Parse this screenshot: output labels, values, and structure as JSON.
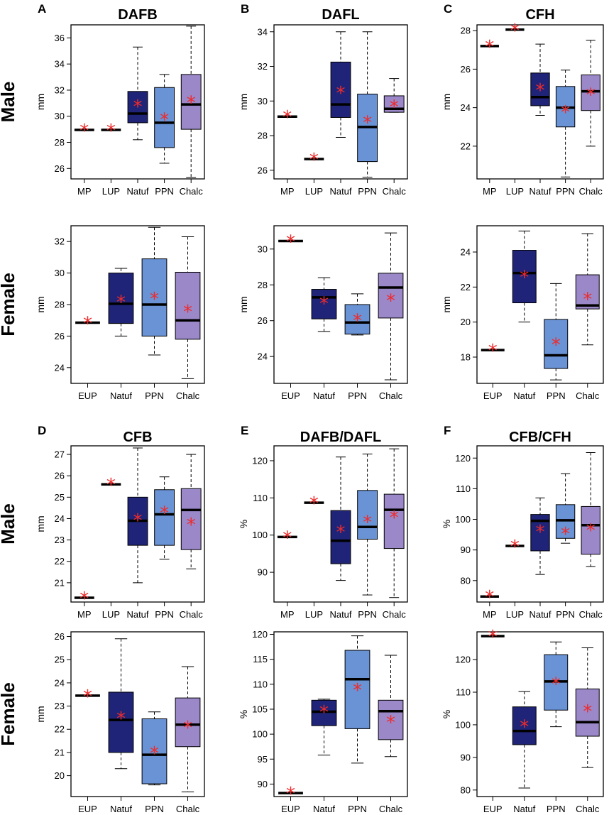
{
  "colors": {
    "MP": "#1f2478",
    "LUP": "#1f2478",
    "EUP": "#1f2478",
    "Natuf": "#1f2478",
    "PPN": "#6a93d6",
    "Chalc": "#9b88c9",
    "median": "#000000",
    "mean_marker": "#ee2b2b",
    "frame": "#000000"
  },
  "layout": {
    "rows": [
      {
        "sex": "Male",
        "panels": [
          "A",
          "B",
          "C"
        ],
        "block": 0,
        "pos": 0
      },
      {
        "sex": "Female",
        "panels": [
          "A",
          "B",
          "C"
        ],
        "block": 0,
        "pos": 1
      },
      {
        "sex": "Male",
        "panels": [
          "D",
          "E",
          "F"
        ],
        "block": 1,
        "pos": 0
      },
      {
        "sex": "Female",
        "panels": [
          "D",
          "E",
          "F"
        ],
        "block": 1,
        "pos": 1
      }
    ]
  },
  "chart_data": [
    {
      "panel": "A",
      "title": "DAFB",
      "type": "box",
      "sex": "Male",
      "ylabel": "mm",
      "ylim": [
        25.2,
        37.0
      ],
      "yticks": [
        26,
        28,
        30,
        32,
        34,
        36
      ],
      "categories": [
        "MP",
        "LUP",
        "Natuf",
        "PPN",
        "Chalc"
      ],
      "boxes": [
        {
          "cat": "MP",
          "min": 28.95,
          "q1": 28.95,
          "median": 28.95,
          "q3": 28.95,
          "max": 28.95,
          "mean": 28.95
        },
        {
          "cat": "LUP",
          "min": 28.95,
          "q1": 28.95,
          "median": 28.95,
          "q3": 28.95,
          "max": 28.95,
          "mean": 28.95
        },
        {
          "cat": "Natuf",
          "min": 28.2,
          "q1": 29.5,
          "median": 30.2,
          "q3": 31.9,
          "max": 35.3,
          "mean": 30.8
        },
        {
          "cat": "PPN",
          "min": 26.4,
          "q1": 27.6,
          "median": 29.5,
          "q3": 32.2,
          "max": 33.2,
          "mean": 29.8
        },
        {
          "cat": "Chalc",
          "min": 25.3,
          "q1": 29.0,
          "median": 30.9,
          "q3": 33.2,
          "max": 36.9,
          "mean": 31.1
        }
      ]
    },
    {
      "panel": "A",
      "title": "DAFB",
      "type": "box",
      "sex": "Female",
      "ylabel": "mm",
      "ylim": [
        23.0,
        33.0
      ],
      "yticks": [
        24,
        26,
        28,
        30,
        32
      ],
      "categories": [
        "EUP",
        "Natuf",
        "PPN",
        "Chalc"
      ],
      "boxes": [
        {
          "cat": "EUP",
          "min": 26.85,
          "q1": 26.85,
          "median": 26.85,
          "q3": 26.85,
          "max": 26.85,
          "mean": 26.85
        },
        {
          "cat": "Natuf",
          "min": 26.0,
          "q1": 26.8,
          "median": 28.05,
          "q3": 30.0,
          "max": 30.3,
          "mean": 28.2
        },
        {
          "cat": "PPN",
          "min": 24.8,
          "q1": 26.0,
          "median": 28.0,
          "q3": 30.9,
          "max": 32.9,
          "mean": 28.4
        },
        {
          "cat": "Chalc",
          "min": 23.3,
          "q1": 25.8,
          "median": 27.0,
          "q3": 30.05,
          "max": 32.3,
          "mean": 27.6
        }
      ]
    },
    {
      "panel": "B",
      "title": "DAFL",
      "type": "box",
      "sex": "Male",
      "ylabel": "mm",
      "ylim": [
        25.5,
        34.4
      ],
      "yticks": [
        26,
        28,
        30,
        32,
        34
      ],
      "categories": [
        "MP",
        "LUP",
        "Natuf",
        "PPN",
        "Chalc"
      ],
      "boxes": [
        {
          "cat": "MP",
          "min": 29.1,
          "q1": 29.1,
          "median": 29.1,
          "q3": 29.1,
          "max": 29.1,
          "mean": 29.1
        },
        {
          "cat": "LUP",
          "min": 26.65,
          "q1": 26.65,
          "median": 26.65,
          "q3": 26.65,
          "max": 26.65,
          "mean": 26.65
        },
        {
          "cat": "Natuf",
          "min": 27.9,
          "q1": 29.05,
          "median": 29.8,
          "q3": 32.25,
          "max": 34.0,
          "mean": 30.5
        },
        {
          "cat": "PPN",
          "min": 25.6,
          "q1": 26.5,
          "median": 28.5,
          "q3": 30.4,
          "max": 34.0,
          "mean": 28.8
        },
        {
          "cat": "Chalc",
          "min": 29.35,
          "q1": 29.35,
          "median": 29.55,
          "q3": 30.3,
          "max": 31.3,
          "mean": 29.7
        }
      ]
    },
    {
      "panel": "B",
      "title": "DAFL",
      "type": "box",
      "sex": "Female",
      "ylabel": "mm",
      "ylim": [
        22.5,
        31.3
      ],
      "yticks": [
        24,
        26,
        28,
        30
      ],
      "categories": [
        "EUP",
        "Natuf",
        "PPN",
        "Chalc"
      ],
      "boxes": [
        {
          "cat": "EUP",
          "min": 30.45,
          "q1": 30.45,
          "median": 30.45,
          "q3": 30.45,
          "max": 30.45,
          "mean": 30.45
        },
        {
          "cat": "Natuf",
          "min": 25.4,
          "q1": 26.1,
          "median": 27.3,
          "q3": 27.75,
          "max": 28.4,
          "mean": 27.0
        },
        {
          "cat": "PPN",
          "min": 25.2,
          "q1": 25.25,
          "median": 25.9,
          "q3": 26.9,
          "max": 27.5,
          "mean": 26.05
        },
        {
          "cat": "Chalc",
          "min": 22.7,
          "q1": 26.15,
          "median": 27.85,
          "q3": 28.65,
          "max": 30.9,
          "mean": 27.15
        }
      ]
    },
    {
      "panel": "C",
      "title": "CFH",
      "type": "box",
      "sex": "Male",
      "ylabel": "mm",
      "ylim": [
        20.3,
        28.3
      ],
      "yticks": [
        22,
        24,
        26,
        28
      ],
      "categories": [
        "MP",
        "LUP",
        "Natuf",
        "PPN",
        "Chalc"
      ],
      "boxes": [
        {
          "cat": "MP",
          "min": 27.2,
          "q1": 27.2,
          "median": 27.2,
          "q3": 27.2,
          "max": 27.2,
          "mean": 27.2
        },
        {
          "cat": "LUP",
          "min": 28.05,
          "q1": 28.05,
          "median": 28.05,
          "q3": 28.05,
          "max": 28.05,
          "mean": 28.05
        },
        {
          "cat": "Natuf",
          "min": 23.6,
          "q1": 24.1,
          "median": 24.55,
          "q3": 25.8,
          "max": 27.3,
          "mean": 24.95
        },
        {
          "cat": "PPN",
          "min": 20.4,
          "q1": 23.0,
          "median": 24.0,
          "q3": 25.1,
          "max": 25.95,
          "mean": 23.8
        },
        {
          "cat": "Chalc",
          "min": 22.0,
          "q1": 23.85,
          "median": 24.85,
          "q3": 25.7,
          "max": 27.5,
          "mean": 24.7
        }
      ]
    },
    {
      "panel": "C",
      "title": "CFH",
      "type": "box",
      "sex": "Female",
      "ylabel": "mm",
      "ylim": [
        16.5,
        25.5
      ],
      "yticks": [
        18,
        20,
        22,
        24
      ],
      "categories": [
        "EUP",
        "Natuf",
        "PPN",
        "Chalc"
      ],
      "boxes": [
        {
          "cat": "EUP",
          "min": 18.4,
          "q1": 18.4,
          "median": 18.4,
          "q3": 18.4,
          "max": 18.4,
          "mean": 18.4
        },
        {
          "cat": "Natuf",
          "min": 20.0,
          "q1": 21.1,
          "median": 22.8,
          "q3": 24.1,
          "max": 25.2,
          "mean": 22.6
        },
        {
          "cat": "PPN",
          "min": 16.7,
          "q1": 17.35,
          "median": 18.1,
          "q3": 20.15,
          "max": 22.2,
          "mean": 18.75
        },
        {
          "cat": "Chalc",
          "min": 18.7,
          "q1": 20.75,
          "median": 20.95,
          "q3": 22.7,
          "max": 25.05,
          "mean": 21.35
        }
      ]
    },
    {
      "panel": "D",
      "title": "CFB",
      "type": "box",
      "sex": "Male",
      "ylabel": "mm",
      "ylim": [
        20.1,
        27.4
      ],
      "yticks": [
        21,
        22,
        23,
        24,
        25,
        26,
        27
      ],
      "categories": [
        "MP",
        "LUP",
        "Natuf",
        "PPN",
        "Chalc"
      ],
      "boxes": [
        {
          "cat": "MP",
          "min": 20.3,
          "q1": 20.3,
          "median": 20.3,
          "q3": 20.3,
          "max": 20.3,
          "mean": 20.3
        },
        {
          "cat": "LUP",
          "min": 25.6,
          "q1": 25.6,
          "median": 25.6,
          "q3": 25.6,
          "max": 25.6,
          "mean": 25.6
        },
        {
          "cat": "Natuf",
          "min": 21.0,
          "q1": 22.75,
          "median": 23.9,
          "q3": 25.0,
          "max": 27.3,
          "mean": 23.95
        },
        {
          "cat": "PPN",
          "min": 22.1,
          "q1": 22.75,
          "median": 24.2,
          "q3": 25.35,
          "max": 25.95,
          "mean": 24.3
        },
        {
          "cat": "Chalc",
          "min": 21.65,
          "q1": 22.55,
          "median": 24.4,
          "q3": 25.4,
          "max": 27.0,
          "mean": 23.75
        }
      ]
    },
    {
      "panel": "D",
      "title": "CFB",
      "type": "box",
      "sex": "Female",
      "ylabel": "mm",
      "ylim": [
        19.1,
        26.2
      ],
      "yticks": [
        20,
        21,
        22,
        23,
        24,
        25,
        26
      ],
      "categories": [
        "EUP",
        "Natuf",
        "PPN",
        "Chalc"
      ],
      "boxes": [
        {
          "cat": "EUP",
          "min": 23.45,
          "q1": 23.45,
          "median": 23.45,
          "q3": 23.45,
          "max": 23.45,
          "mean": 23.45
        },
        {
          "cat": "Natuf",
          "min": 20.3,
          "q1": 21.0,
          "median": 22.4,
          "q3": 23.6,
          "max": 25.9,
          "mean": 22.5
        },
        {
          "cat": "PPN",
          "min": 19.6,
          "q1": 19.65,
          "median": 20.9,
          "q3": 22.45,
          "max": 22.75,
          "mean": 21.0
        },
        {
          "cat": "Chalc",
          "min": 19.3,
          "q1": 21.25,
          "median": 22.2,
          "q3": 23.35,
          "max": 24.7,
          "mean": 22.1
        }
      ]
    },
    {
      "panel": "E",
      "title": "DAFB/DAFL",
      "type": "box",
      "sex": "Male",
      "ylabel": "%",
      "ylim": [
        82,
        124
      ],
      "yticks": [
        90,
        100,
        110,
        120
      ],
      "categories": [
        "MP",
        "LUP",
        "Natuf",
        "PPN",
        "Chalc"
      ],
      "boxes": [
        {
          "cat": "MP",
          "min": 99.5,
          "q1": 99.5,
          "median": 99.5,
          "q3": 99.5,
          "max": 99.5,
          "mean": 99.5
        },
        {
          "cat": "LUP",
          "min": 108.7,
          "q1": 108.7,
          "median": 108.7,
          "q3": 108.7,
          "max": 108.7,
          "mean": 108.7
        },
        {
          "cat": "Natuf",
          "min": 87.8,
          "q1": 92.3,
          "median": 98.5,
          "q3": 106.6,
          "max": 121.0,
          "mean": 101.0
        },
        {
          "cat": "PPN",
          "min": 83.9,
          "q1": 98.9,
          "median": 102.2,
          "q3": 112.0,
          "max": 121.8,
          "mean": 103.7
        },
        {
          "cat": "Chalc",
          "min": 83.2,
          "q1": 96.4,
          "median": 106.8,
          "q3": 111.0,
          "max": 123.2,
          "mean": 104.9
        }
      ]
    },
    {
      "panel": "E",
      "title": "DAFB/DAFL",
      "type": "box",
      "sex": "Female",
      "ylabel": "%",
      "ylim": [
        87.5,
        120.5
      ],
      "yticks": [
        90,
        95,
        100,
        105,
        110,
        115,
        120
      ],
      "categories": [
        "EUP",
        "Natuf",
        "PPN",
        "Chalc"
      ],
      "boxes": [
        {
          "cat": "EUP",
          "min": 88.2,
          "q1": 88.2,
          "median": 88.2,
          "q3": 88.2,
          "max": 88.2,
          "mean": 88.2
        },
        {
          "cat": "Natuf",
          "min": 95.8,
          "q1": 101.7,
          "median": 104.5,
          "q3": 106.8,
          "max": 107.0,
          "mean": 104.6
        },
        {
          "cat": "PPN",
          "min": 94.2,
          "q1": 101.1,
          "median": 111.0,
          "q3": 116.8,
          "max": 119.7,
          "mean": 109.0
        },
        {
          "cat": "Chalc",
          "min": 95.5,
          "q1": 98.9,
          "median": 104.6,
          "q3": 106.8,
          "max": 115.8,
          "mean": 102.5
        }
      ]
    },
    {
      "panel": "F",
      "title": "CFB/CFH",
      "type": "box",
      "sex": "Male",
      "ylabel": "%",
      "ylim": [
        73,
        124
      ],
      "yticks": [
        80,
        90,
        100,
        110,
        120
      ],
      "categories": [
        "MP",
        "LUP",
        "Natuf",
        "PPN",
        "Chalc"
      ],
      "boxes": [
        {
          "cat": "MP",
          "min": 74.8,
          "q1": 74.8,
          "median": 74.8,
          "q3": 74.8,
          "max": 74.8,
          "mean": 74.8
        },
        {
          "cat": "LUP",
          "min": 91.3,
          "q1": 91.3,
          "median": 91.3,
          "q3": 91.3,
          "max": 91.3,
          "mean": 91.3
        },
        {
          "cat": "Natuf",
          "min": 82.0,
          "q1": 89.7,
          "median": 99.5,
          "q3": 101.6,
          "max": 107.0,
          "mean": 96.2
        },
        {
          "cat": "PPN",
          "min": 92.2,
          "q1": 93.8,
          "median": 99.7,
          "q3": 104.8,
          "max": 114.9,
          "mean": 95.5
        },
        {
          "cat": "Chalc",
          "min": 84.6,
          "q1": 88.6,
          "median": 98.1,
          "q3": 104.2,
          "max": 121.8,
          "mean": 96.6
        }
      ]
    },
    {
      "panel": "F",
      "title": "CFB/CFH",
      "type": "box",
      "sex": "Female",
      "ylabel": "%",
      "ylim": [
        78,
        128.5
      ],
      "yticks": [
        80,
        90,
        100,
        110,
        120
      ],
      "categories": [
        "EUP",
        "Natuf",
        "PPN",
        "Chalc"
      ],
      "boxes": [
        {
          "cat": "EUP",
          "min": 127.2,
          "q1": 127.2,
          "median": 127.2,
          "q3": 127.2,
          "max": 127.2,
          "mean": 127.2
        },
        {
          "cat": "Natuf",
          "min": 80.6,
          "q1": 93.9,
          "median": 98.1,
          "q3": 105.5,
          "max": 110.2,
          "mean": 99.7
        },
        {
          "cat": "PPN",
          "min": 99.4,
          "q1": 104.5,
          "median": 113.3,
          "q3": 121.5,
          "max": 125.4,
          "mean": 112.7
        },
        {
          "cat": "Chalc",
          "min": 86.9,
          "q1": 96.5,
          "median": 100.8,
          "q3": 111.0,
          "max": 123.6,
          "mean": 104.3
        }
      ]
    }
  ]
}
